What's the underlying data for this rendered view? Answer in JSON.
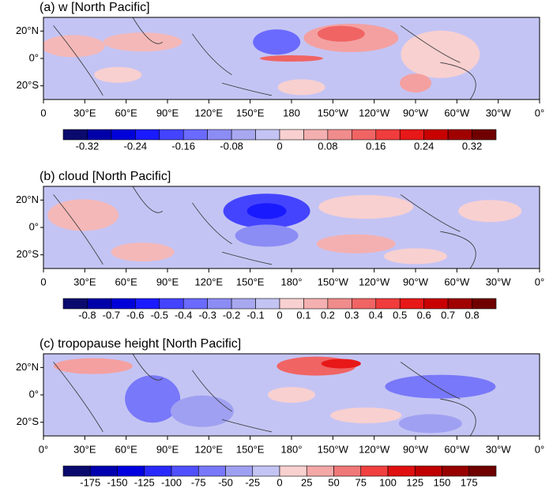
{
  "panels": [
    {
      "title": "(a) w [North Pacific]",
      "lat_labels": [
        "20°N",
        "0°",
        "20°S"
      ],
      "lon_labels": [
        "0",
        "30°E",
        "60°E",
        "90°E",
        "120°E",
        "150°E",
        "180",
        "150°W",
        "120°W",
        "90°W",
        "60°W",
        "30°W",
        "0°"
      ],
      "colorbar": {
        "lim": [
          -0.36,
          0.36
        ],
        "ticks": [
          -0.32,
          -0.24,
          -0.16,
          -0.08,
          0,
          0.08,
          0.16,
          0.24,
          0.32
        ],
        "colors": [
          "#0a0a6e",
          "#0000a8",
          "#0000d8",
          "#1a1aff",
          "#4444ff",
          "#6a6aff",
          "#8c8cf5",
          "#a8a8f0",
          "#c4c4f4",
          "#f8d0d0",
          "#f4b0b0",
          "#f08c8c",
          "#f06464",
          "#f03c3c",
          "#e81818",
          "#c80000",
          "#a00000",
          "#700000"
        ]
      }
    },
    {
      "title": "(b) cloud [North Pacific]",
      "lat_labels": [
        "20°N",
        "0°",
        "20°S"
      ],
      "lon_labels": [
        "0",
        "30°E",
        "60°E",
        "90°E",
        "120°E",
        "150°E",
        "180°",
        "150°W",
        "120°W",
        "90°W",
        "60°W",
        "30°W",
        "0°"
      ],
      "colorbar": {
        "lim": [
          -0.9,
          0.9
        ],
        "ticks": [
          -0.8,
          -0.7,
          -0.6,
          -0.5,
          -0.4,
          -0.3,
          -0.2,
          -0.1,
          0,
          0.1,
          0.2,
          0.3,
          0.4,
          0.5,
          0.6,
          0.7,
          0.8
        ],
        "colors": [
          "#0a0a6e",
          "#0000a8",
          "#0000d8",
          "#1a1aff",
          "#4444ff",
          "#6a6aff",
          "#8c8cf5",
          "#a8a8f0",
          "#c4c4f4",
          "#f8d0d0",
          "#f4b0b0",
          "#f08c8c",
          "#f06464",
          "#f03c3c",
          "#e81818",
          "#c80000",
          "#a00000",
          "#700000"
        ]
      }
    },
    {
      "title": "(c) tropopause height [North Pacific]",
      "lat_labels": [
        "20°N",
        "0°",
        "20°S"
      ],
      "lon_labels": [
        "0°",
        "30°E",
        "60°E",
        "90°E",
        "120°E",
        "150°E",
        "180°",
        "150°W",
        "120°W",
        "90°W",
        "60°W",
        "30°W",
        "0°"
      ],
      "colorbar": {
        "lim": [
          -200,
          200
        ],
        "ticks": [
          -175,
          -150,
          -125,
          -100,
          -75,
          -50,
          -25,
          0,
          25,
          50,
          75,
          100,
          125,
          150,
          175
        ],
        "colors": [
          "#0a0a6e",
          "#0000b0",
          "#0000e0",
          "#2a2aff",
          "#5050ff",
          "#7878fa",
          "#a0a0f2",
          "#c4c4f4",
          "#f8d0d0",
          "#f4a8a8",
          "#f07878",
          "#f04040",
          "#e01010",
          "#c00000",
          "#980000",
          "#700000"
        ]
      }
    }
  ]
}
